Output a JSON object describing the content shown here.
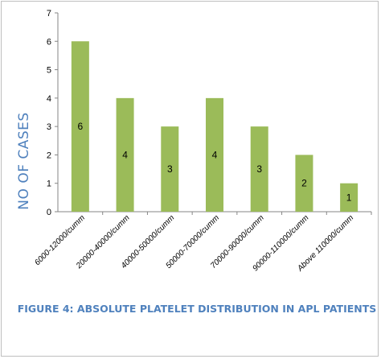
{
  "chart_data": {
    "type": "bar",
    "categories": [
      "6000-12000/cumm",
      "20000-40000/cumm",
      "40000-50000/cumm",
      "50000-70000/cumm",
      "70000-90000/cumm",
      "90000-110000/cumm",
      "Above 110000/cumm"
    ],
    "values": [
      6,
      4,
      3,
      4,
      3,
      2,
      1
    ],
    "data_labels": [
      "6",
      "4",
      "3",
      "4",
      "3",
      "2",
      "1"
    ],
    "ylabel": "NO OF CASES",
    "xlabel": "",
    "caption": "FIGURE 4: ABSOLUTE PLATELET DISTRIBUTION IN APL PATIENTS",
    "ylim": [
      0,
      7
    ],
    "yticks": [
      "0",
      "1",
      "2",
      "3",
      "4",
      "5",
      "6",
      "7"
    ],
    "grid": false,
    "legend": "none",
    "bar_color": "#9bbb59",
    "text_color": "#4f81bd"
  }
}
